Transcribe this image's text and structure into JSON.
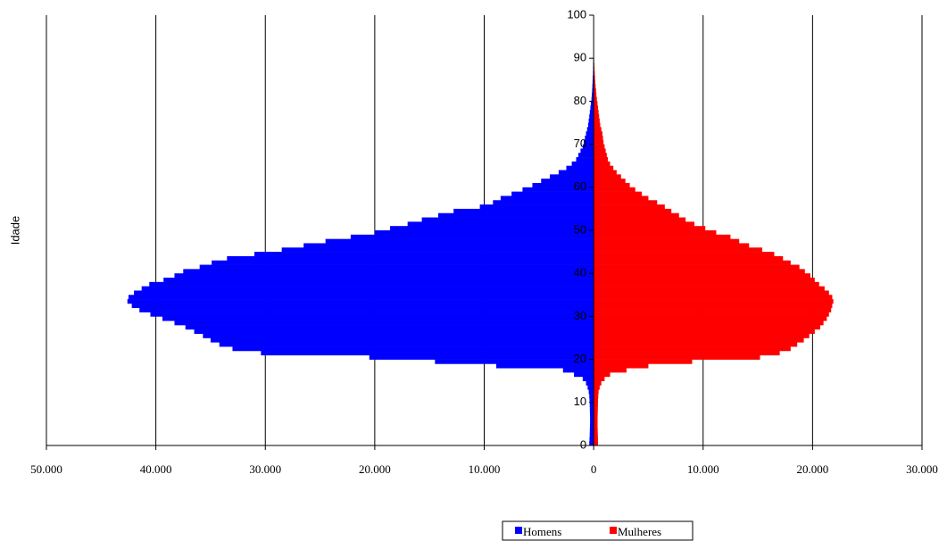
{
  "chart_data": {
    "type": "pyramid",
    "y_label": "Idade",
    "categories": [
      0,
      1,
      2,
      3,
      4,
      5,
      6,
      7,
      8,
      9,
      10,
      11,
      12,
      13,
      14,
      15,
      16,
      17,
      18,
      19,
      20,
      21,
      22,
      23,
      24,
      25,
      26,
      27,
      28,
      29,
      30,
      31,
      32,
      33,
      34,
      35,
      36,
      37,
      38,
      39,
      40,
      41,
      42,
      43,
      44,
      45,
      46,
      47,
      48,
      49,
      50,
      51,
      52,
      53,
      54,
      55,
      56,
      57,
      58,
      59,
      60,
      61,
      62,
      63,
      64,
      65,
      66,
      67,
      68,
      69,
      70,
      71,
      72,
      73,
      74,
      75,
      76,
      77,
      78,
      79,
      80,
      81,
      82,
      83,
      84,
      85,
      86,
      87,
      88,
      89
    ],
    "series": [
      {
        "name": "Homens",
        "color": "#0000ff",
        "values": [
          -400,
          -380,
          -360,
          -350,
          -340,
          -330,
          -330,
          -340,
          -350,
          -360,
          -380,
          -400,
          -450,
          -550,
          -700,
          -1000,
          -1800,
          -2800,
          -8900,
          -14500,
          -20500,
          -30400,
          -33000,
          -34200,
          -35000,
          -35700,
          -36500,
          -37300,
          -38300,
          -39400,
          -40500,
          -41500,
          -42200,
          -42600,
          -42500,
          -42000,
          -41300,
          -40600,
          -39300,
          -38300,
          -37500,
          -36000,
          -34900,
          -33500,
          -31000,
          -28500,
          -26500,
          -24500,
          -22200,
          -20000,
          -18600,
          -17000,
          -15700,
          -14200,
          -12800,
          -10400,
          -9200,
          -8500,
          -7500,
          -6500,
          -5600,
          -4800,
          -4000,
          -3200,
          -2500,
          -2000,
          -1600,
          -1400,
          -1200,
          -1000,
          -900,
          -800,
          -700,
          -600,
          -500,
          -450,
          -400,
          -350,
          -300,
          -250,
          -200,
          -170,
          -140,
          -120,
          -100,
          -80,
          -60,
          -50,
          -40,
          -30
        ]
      },
      {
        "name": "Mulheres",
        "color": "#ff0000",
        "values": [
          400,
          390,
          380,
          370,
          360,
          360,
          360,
          370,
          380,
          390,
          400,
          420,
          450,
          550,
          700,
          1000,
          1500,
          3000,
          5000,
          9000,
          15200,
          17000,
          18000,
          18600,
          19200,
          19700,
          20200,
          20700,
          21000,
          21300,
          21500,
          21700,
          21800,
          21900,
          21800,
          21500,
          21100,
          20600,
          20200,
          19800,
          19300,
          18800,
          18000,
          17300,
          16500,
          15400,
          14200,
          13300,
          12500,
          11200,
          10200,
          9200,
          8400,
          7800,
          7100,
          6500,
          5800,
          5000,
          4400,
          3800,
          3300,
          2900,
          2500,
          2100,
          1800,
          1500,
          1300,
          1200,
          1100,
          1000,
          900,
          850,
          800,
          700,
          600,
          550,
          500,
          450,
          400,
          350,
          300,
          250,
          220,
          180,
          150,
          120,
          100,
          80,
          60,
          40
        ]
      }
    ],
    "xlim": [
      -50000,
      30000
    ],
    "xticks": [
      {
        "value": -50000,
        "label": "50.000"
      },
      {
        "value": -40000,
        "label": "40.000"
      },
      {
        "value": -30000,
        "label": "30.000"
      },
      {
        "value": -20000,
        "label": "20.000"
      },
      {
        "value": -10000,
        "label": "10.000"
      },
      0,
      {
        "value": 10000,
        "label": "10.000"
      },
      {
        "value": 20000,
        "label": "20.000"
      },
      {
        "value": 30000,
        "label": "30.000"
      }
    ],
    "ylim": [
      0,
      100
    ],
    "yticks": [
      0,
      10,
      20,
      30,
      40,
      50,
      60,
      70,
      80,
      90,
      100
    ],
    "grid": true
  }
}
